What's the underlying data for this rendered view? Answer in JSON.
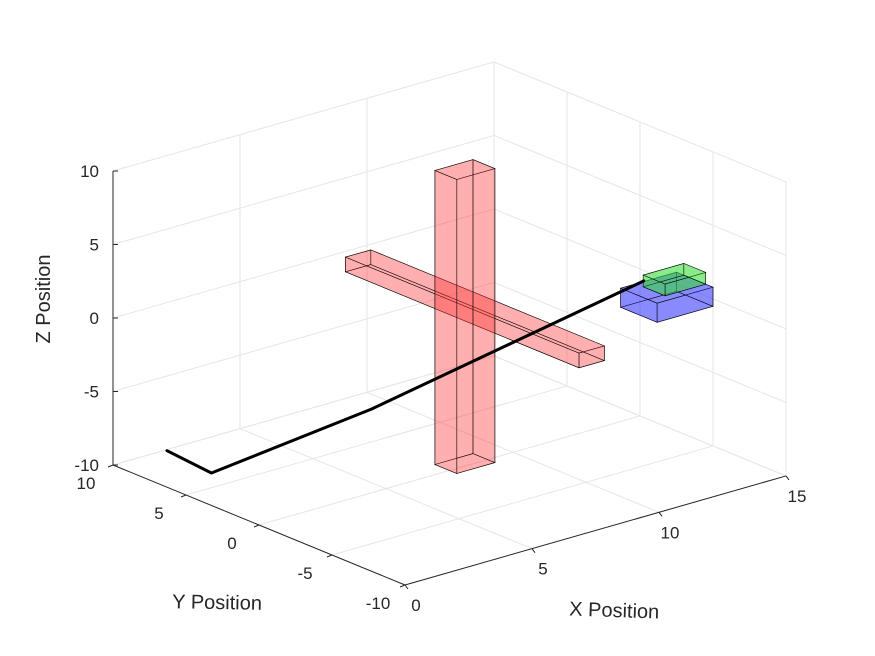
{
  "chart_data": {
    "type": "3d-line-with-solids",
    "xlabel": "X Position",
    "ylabel": "Y Position",
    "zlabel": "Z Position",
    "xlim": [
      0,
      15
    ],
    "ylim": [
      -10,
      10
    ],
    "zlim": [
      -10,
      10
    ],
    "xticks": [
      "0",
      "5",
      "10",
      "15"
    ],
    "yticks": [
      "-10",
      "-5",
      "0",
      "5",
      "10"
    ],
    "zticks": [
      "-10",
      "-5",
      "0",
      "5",
      "10"
    ],
    "grid": true,
    "colors": {
      "obstacle": "#ff3333",
      "path": "#000000",
      "vehicle_body": "#3333ff",
      "vehicle_top": "#33dd33",
      "grid": "#e6e6e6",
      "axis": "#262626"
    },
    "path_line": {
      "name": "",
      "x": [
        14.0,
        5.0,
        1.0,
        0.4
      ],
      "y": [
        -2.0,
        1.0,
        5.0,
        7.0
      ],
      "z": [
        0.5,
        -5.0,
        -9.0,
        -8.0
      ]
    },
    "obstacles": [
      {
        "shape": "box",
        "x": [
          8.0,
          9.0
        ],
        "y": [
          -8.0,
          8.0
        ],
        "z": [
          0.0,
          1.0
        ]
      },
      {
        "shape": "box",
        "x": [
          7.5,
          9.0
        ],
        "y": [
          -0.5,
          1.0
        ],
        "z": [
          -10.0,
          10.0
        ]
      }
    ],
    "vehicle": {
      "body": {
        "x": [
          12.8,
          15.0
        ],
        "y": [
          -5.0,
          -2.5
        ],
        "z": [
          -0.5,
          0.8
        ]
      },
      "top": {
        "x": [
          13.4,
          15.0
        ],
        "y": [
          -4.5,
          -3.0
        ],
        "z": [
          0.8,
          1.6
        ]
      }
    }
  }
}
